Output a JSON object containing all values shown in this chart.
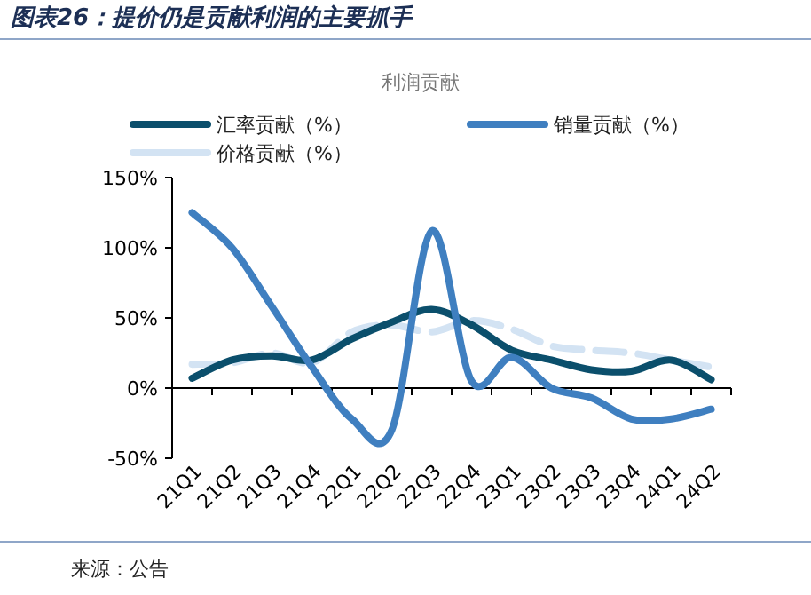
{
  "chart_data": {
    "type": "line",
    "title": "利润贡献",
    "subtitle": "图表26：提价仍是贡献利润的主要抓手",
    "categories": [
      "21Q1",
      "21Q2",
      "21Q3",
      "21Q4",
      "22Q1",
      "22Q2",
      "22Q3",
      "22Q4",
      "23Q1",
      "23Q2",
      "23Q3",
      "23Q4",
      "24Q1",
      "24Q2"
    ],
    "series": [
      {
        "name": "汇率贡献（%）",
        "color": "#0b4f6c",
        "values": [
          7,
          20,
          23,
          20,
          35,
          47,
          56,
          45,
          27,
          20,
          13,
          12,
          20,
          6
        ]
      },
      {
        "name": "销量贡献（%）",
        "color": "#3f7fc0",
        "values": [
          125,
          100,
          58,
          15,
          -22,
          -30,
          112,
          5,
          22,
          0,
          -7,
          -22,
          -22,
          -15
        ],
        "line_style": "solid"
      },
      {
        "name": "价格贡献（%）",
        "color": "#d3e3f3",
        "values": [
          17,
          18,
          25,
          18,
          40,
          45,
          40,
          48,
          42,
          30,
          27,
          25,
          20,
          15
        ],
        "line_style": "dashed"
      }
    ],
    "ylim": [
      -50,
      150
    ],
    "yticks": [
      {
        "value": -50,
        "label": "-50%"
      },
      {
        "value": 0,
        "label": "0%"
      },
      {
        "value": 50,
        "label": "50%"
      },
      {
        "value": 100,
        "label": "100%"
      },
      {
        "value": 150,
        "label": "150%"
      }
    ],
    "legend": "top",
    "annotations": [
      "来源：公告"
    ]
  }
}
